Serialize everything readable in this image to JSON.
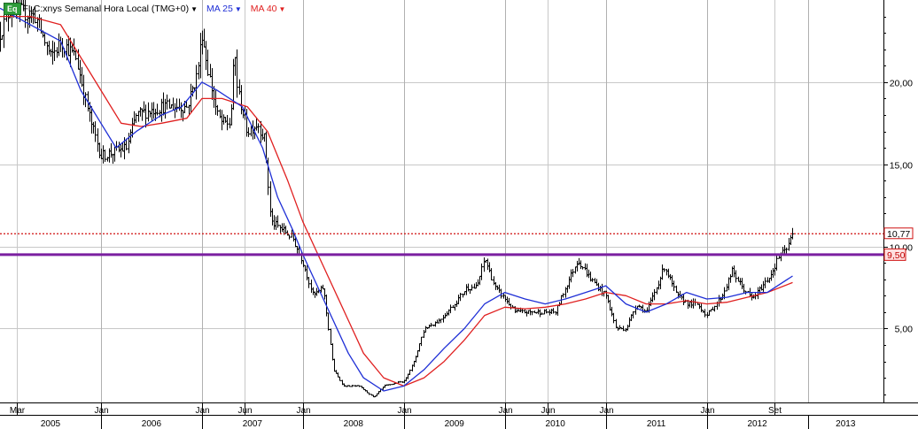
{
  "header": {
    "badge": "Eq",
    "symbol": "FLC:xnys Semanal Hora Local (TMG+0)",
    "ma1_label": "MA 25",
    "ma2_label": "MA 40"
  },
  "colors": {
    "ma25": "#1f2fd6",
    "ma40": "#e02020",
    "support_line": "#7a1fa0",
    "resistance_dotted": "#d01010",
    "candles": "#000000"
  },
  "chart_data": {
    "type": "candlestick",
    "timeframe": "weekly",
    "y_ticks": [
      5,
      10,
      15,
      20
    ],
    "y_tick_labels": [
      "5,00",
      "10,00",
      "15,00",
      "20,00"
    ],
    "ylim": [
      0.5,
      25
    ],
    "x_month_labels": [
      {
        "label": "Mar",
        "t": 2005.17
      },
      {
        "label": "Jan",
        "t": 2006.0
      },
      {
        "label": "Jan",
        "t": 2007.0
      },
      {
        "label": "Jun",
        "t": 2007.42
      },
      {
        "label": "Jan",
        "t": 2008.0
      },
      {
        "label": "Jan",
        "t": 2009.0
      },
      {
        "label": "Jan",
        "t": 2010.0
      },
      {
        "label": "Jun",
        "t": 2010.42
      },
      {
        "label": "Jan",
        "t": 2011.0
      },
      {
        "label": "Jan",
        "t": 2012.0
      },
      {
        "label": "Set",
        "t": 2012.67
      }
    ],
    "x_year_labels": [
      "2005",
      "2006",
      "2007",
      "2008",
      "2009",
      "2010",
      "2011",
      "2012",
      "2013"
    ],
    "xlim": [
      2005.0,
      2013.75
    ],
    "horizontal_lines": [
      {
        "value": 10.77,
        "label": "10,77",
        "style": "dotted"
      },
      {
        "value": 9.5,
        "label": "9,50",
        "style": "solid"
      }
    ],
    "price_path": [
      [
        2005.0,
        23.0
      ],
      [
        2005.1,
        24.5
      ],
      [
        2005.35,
        24.0
      ],
      [
        2005.5,
        21.5
      ],
      [
        2005.6,
        22.5
      ],
      [
        2005.75,
        21.5
      ],
      [
        2005.9,
        17.5
      ],
      [
        2006.0,
        15.5
      ],
      [
        2006.15,
        15.8
      ],
      [
        2006.25,
        16.0
      ],
      [
        2006.35,
        18.0
      ],
      [
        2006.6,
        18.5
      ],
      [
        2006.85,
        18.5
      ],
      [
        2006.95,
        20.5
      ],
      [
        2007.0,
        23.0
      ],
      [
        2007.05,
        21.0
      ],
      [
        2007.15,
        18.0
      ],
      [
        2007.2,
        17.5
      ],
      [
        2007.28,
        17.5
      ],
      [
        2007.32,
        22.0
      ],
      [
        2007.35,
        19.5
      ],
      [
        2007.45,
        17.0
      ],
      [
        2007.55,
        17.5
      ],
      [
        2007.62,
        16.5
      ],
      [
        2007.68,
        11.5
      ],
      [
        2007.8,
        11.0
      ],
      [
        2007.9,
        10.5
      ],
      [
        2008.0,
        9.0
      ],
      [
        2008.1,
        7.0
      ],
      [
        2008.2,
        7.5
      ],
      [
        2008.25,
        5.0
      ],
      [
        2008.3,
        2.5
      ],
      [
        2008.4,
        1.5
      ],
      [
        2008.55,
        1.5
      ],
      [
        2008.7,
        0.8
      ],
      [
        2008.8,
        1.5
      ],
      [
        2009.0,
        1.8
      ],
      [
        2009.1,
        3.0
      ],
      [
        2009.2,
        5.0
      ],
      [
        2009.35,
        5.5
      ],
      [
        2009.5,
        6.5
      ],
      [
        2009.62,
        7.5
      ],
      [
        2009.72,
        7.5
      ],
      [
        2009.8,
        9.3
      ],
      [
        2009.9,
        7.5
      ],
      [
        2010.0,
        6.8
      ],
      [
        2010.1,
        6.0
      ],
      [
        2010.3,
        6.0
      ],
      [
        2010.5,
        6.0
      ],
      [
        2010.6,
        7.5
      ],
      [
        2010.72,
        9.2
      ],
      [
        2010.85,
        8.0
      ],
      [
        2011.0,
        7.0
      ],
      [
        2011.1,
        5.0
      ],
      [
        2011.2,
        5.0
      ],
      [
        2011.3,
        6.5
      ],
      [
        2011.4,
        6.0
      ],
      [
        2011.5,
        7.5
      ],
      [
        2011.58,
        8.8
      ],
      [
        2011.7,
        7.0
      ],
      [
        2011.82,
        6.5
      ],
      [
        2011.9,
        6.5
      ],
      [
        2012.0,
        5.8
      ],
      [
        2012.15,
        7.0
      ],
      [
        2012.25,
        8.5
      ],
      [
        2012.35,
        7.5
      ],
      [
        2012.45,
        6.8
      ],
      [
        2012.6,
        8.0
      ],
      [
        2012.65,
        8.5
      ],
      [
        2012.72,
        9.5
      ],
      [
        2012.78,
        9.7
      ],
      [
        2012.85,
        10.8
      ]
    ],
    "ma25_path": [
      [
        2005.0,
        24.5
      ],
      [
        2005.3,
        23.5
      ],
      [
        2005.6,
        22.5
      ],
      [
        2005.8,
        19.5
      ],
      [
        2006.0,
        17.5
      ],
      [
        2006.15,
        16.0
      ],
      [
        2006.35,
        17.0
      ],
      [
        2006.6,
        18.0
      ],
      [
        2006.8,
        18.5
      ],
      [
        2007.0,
        20.0
      ],
      [
        2007.15,
        19.5
      ],
      [
        2007.4,
        18.5
      ],
      [
        2007.6,
        16.0
      ],
      [
        2007.75,
        13.0
      ],
      [
        2007.9,
        11.0
      ],
      [
        2008.0,
        9.5
      ],
      [
        2008.15,
        7.5
      ],
      [
        2008.3,
        5.5
      ],
      [
        2008.45,
        3.5
      ],
      [
        2008.6,
        2.0
      ],
      [
        2008.8,
        1.2
      ],
      [
        2009.0,
        1.5
      ],
      [
        2009.2,
        2.5
      ],
      [
        2009.4,
        3.8
      ],
      [
        2009.6,
        5.0
      ],
      [
        2009.8,
        6.5
      ],
      [
        2010.0,
        7.2
      ],
      [
        2010.2,
        6.8
      ],
      [
        2010.4,
        6.5
      ],
      [
        2010.6,
        6.8
      ],
      [
        2010.8,
        7.2
      ],
      [
        2011.0,
        7.6
      ],
      [
        2011.2,
        6.5
      ],
      [
        2011.4,
        6.0
      ],
      [
        2011.6,
        6.5
      ],
      [
        2011.8,
        7.2
      ],
      [
        2012.0,
        6.8
      ],
      [
        2012.2,
        6.9
      ],
      [
        2012.4,
        7.2
      ],
      [
        2012.6,
        7.2
      ],
      [
        2012.85,
        8.2
      ]
    ],
    "ma40_path": [
      [
        2005.0,
        24.0
      ],
      [
        2005.3,
        24.0
      ],
      [
        2005.6,
        23.5
      ],
      [
        2005.8,
        21.5
      ],
      [
        2006.0,
        19.5
      ],
      [
        2006.2,
        17.5
      ],
      [
        2006.4,
        17.3
      ],
      [
        2006.6,
        17.5
      ],
      [
        2006.85,
        17.8
      ],
      [
        2007.0,
        19.0
      ],
      [
        2007.2,
        19.0
      ],
      [
        2007.45,
        18.5
      ],
      [
        2007.65,
        17.0
      ],
      [
        2007.85,
        14.0
      ],
      [
        2008.0,
        11.5
      ],
      [
        2008.15,
        9.5
      ],
      [
        2008.3,
        7.5
      ],
      [
        2008.45,
        5.5
      ],
      [
        2008.6,
        3.5
      ],
      [
        2008.8,
        2.0
      ],
      [
        2009.0,
        1.5
      ],
      [
        2009.2,
        2.0
      ],
      [
        2009.4,
        3.0
      ],
      [
        2009.6,
        4.3
      ],
      [
        2009.8,
        5.8
      ],
      [
        2010.0,
        6.3
      ],
      [
        2010.2,
        6.2
      ],
      [
        2010.4,
        6.3
      ],
      [
        2010.6,
        6.5
      ],
      [
        2010.8,
        6.8
      ],
      [
        2011.0,
        7.2
      ],
      [
        2011.2,
        7.0
      ],
      [
        2011.4,
        6.5
      ],
      [
        2011.6,
        6.5
      ],
      [
        2011.8,
        6.7
      ],
      [
        2012.0,
        6.5
      ],
      [
        2012.2,
        6.6
      ],
      [
        2012.4,
        6.9
      ],
      [
        2012.6,
        7.2
      ],
      [
        2012.85,
        7.8
      ]
    ]
  }
}
